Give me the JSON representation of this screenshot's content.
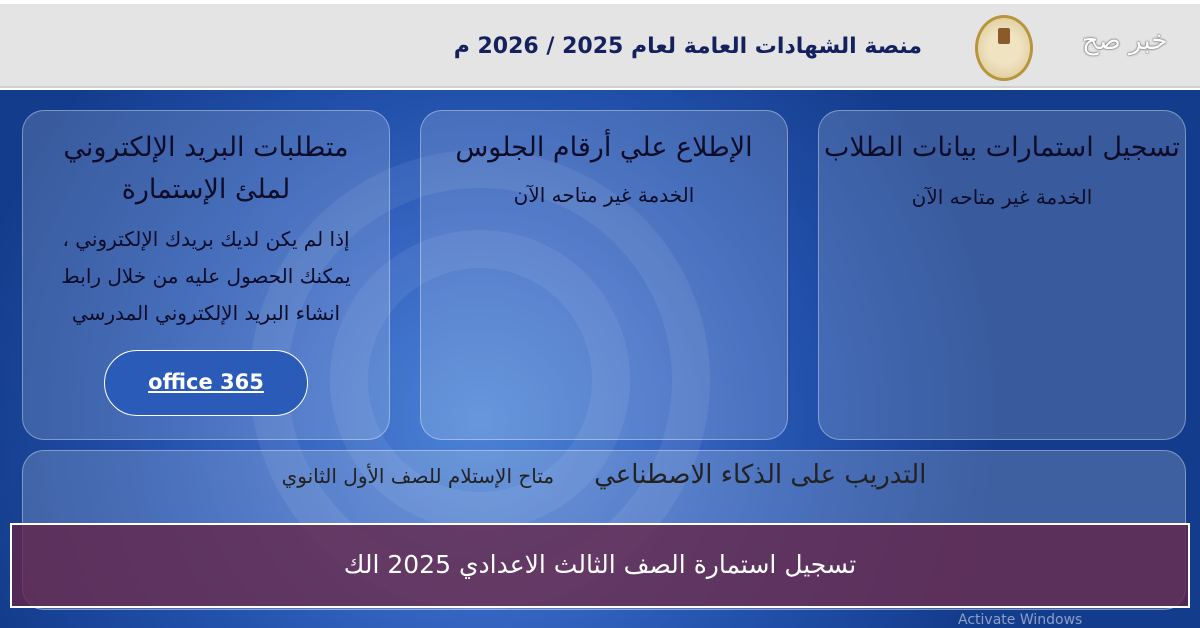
{
  "header": {
    "title": "منصة الشهادات العامة لعام 2025 / 2026 م",
    "brand": "خبر صح"
  },
  "cards": [
    {
      "title": "تسجيل استمارات بيانات الطلاب",
      "status": "الخدمة غير متاحه الآن"
    },
    {
      "title": "الإطلاع علي أرقام الجلوس",
      "status": "الخدمة غير متاحه الآن"
    },
    {
      "title": "متطلبات البريد الإلكتروني لملئ الإستمارة",
      "body": "إذا لم يكن لديك بريدك الإلكتروني ، يمكنك الحصول عليه من خلال رابط انشاء البريد الإلكتروني المدرسي",
      "button": "office 365"
    }
  ],
  "wide_card": {
    "title": "التدريب على الذكاء الاصطناعي",
    "status": "متاح الإستلام للصف الأول الثانوي"
  },
  "banner": {
    "text": "تسجيل استمارة الصف الثالث الاعدادي 2025 الك"
  },
  "watermark": "Activate Windows"
}
